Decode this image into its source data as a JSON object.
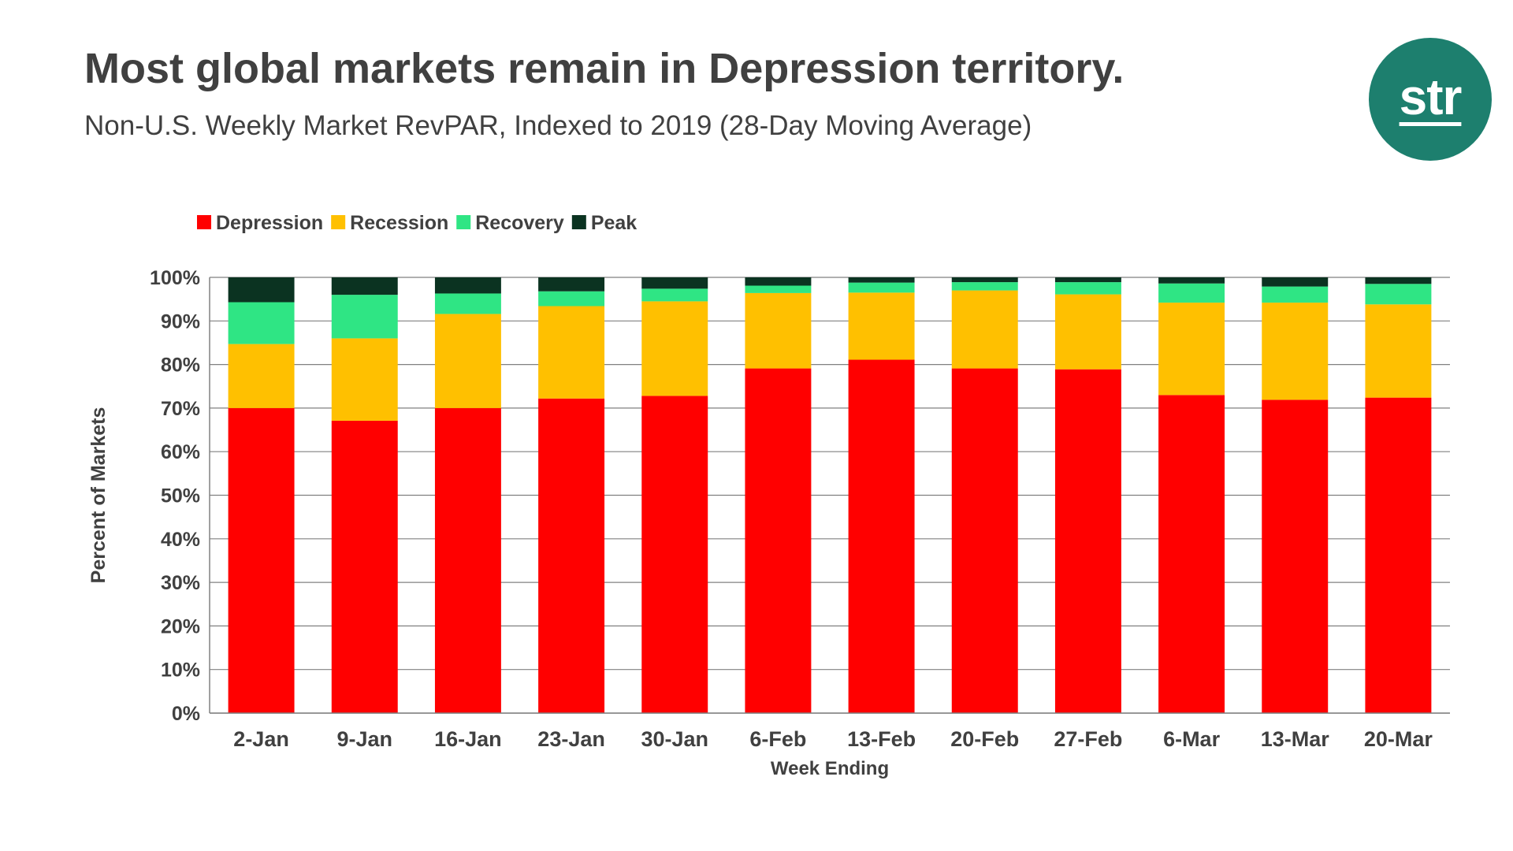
{
  "header": {
    "title": "Most global markets remain in Depression territory.",
    "subtitle": "Non-U.S. Weekly Market RevPAR, Indexed to 2019 (28-Day Moving Average)"
  },
  "logo": {
    "text": "str",
    "color": "#1d7f6e"
  },
  "chart_data": {
    "type": "bar",
    "stacked": true,
    "title": "",
    "xlabel": "Week Ending",
    "ylabel": "Percent of Markets",
    "ylim": [
      0,
      100
    ],
    "yticks": [
      "0%",
      "10%",
      "20%",
      "30%",
      "40%",
      "50%",
      "60%",
      "70%",
      "80%",
      "90%",
      "100%"
    ],
    "categories": [
      "2-Jan",
      "9-Jan",
      "16-Jan",
      "23-Jan",
      "30-Jan",
      "6-Feb",
      "13-Feb",
      "20-Feb",
      "27-Feb",
      "6-Mar",
      "13-Mar",
      "20-Mar"
    ],
    "legend_position": "top-left",
    "grid": true,
    "series": [
      {
        "name": "Depression",
        "color": "#ff0000",
        "values": [
          70.0,
          67.1,
          70.0,
          72.2,
          72.8,
          79.1,
          81.1,
          79.1,
          78.9,
          73.0,
          71.9,
          72.4
        ]
      },
      {
        "name": "Recession",
        "color": "#ffc000",
        "values": [
          14.7,
          18.9,
          21.6,
          21.2,
          21.7,
          17.3,
          15.4,
          17.9,
          17.2,
          21.2,
          22.3,
          21.4
        ]
      },
      {
        "name": "Recovery",
        "color": "#2fe584",
        "values": [
          9.6,
          10.0,
          4.7,
          3.4,
          2.9,
          1.7,
          2.3,
          1.9,
          2.8,
          4.4,
          3.7,
          4.7
        ]
      },
      {
        "name": "Peak",
        "color": "#0b3321",
        "values": [
          5.7,
          4.0,
          3.7,
          3.2,
          2.6,
          1.9,
          1.2,
          1.1,
          1.1,
          1.4,
          2.1,
          1.5
        ]
      }
    ]
  }
}
